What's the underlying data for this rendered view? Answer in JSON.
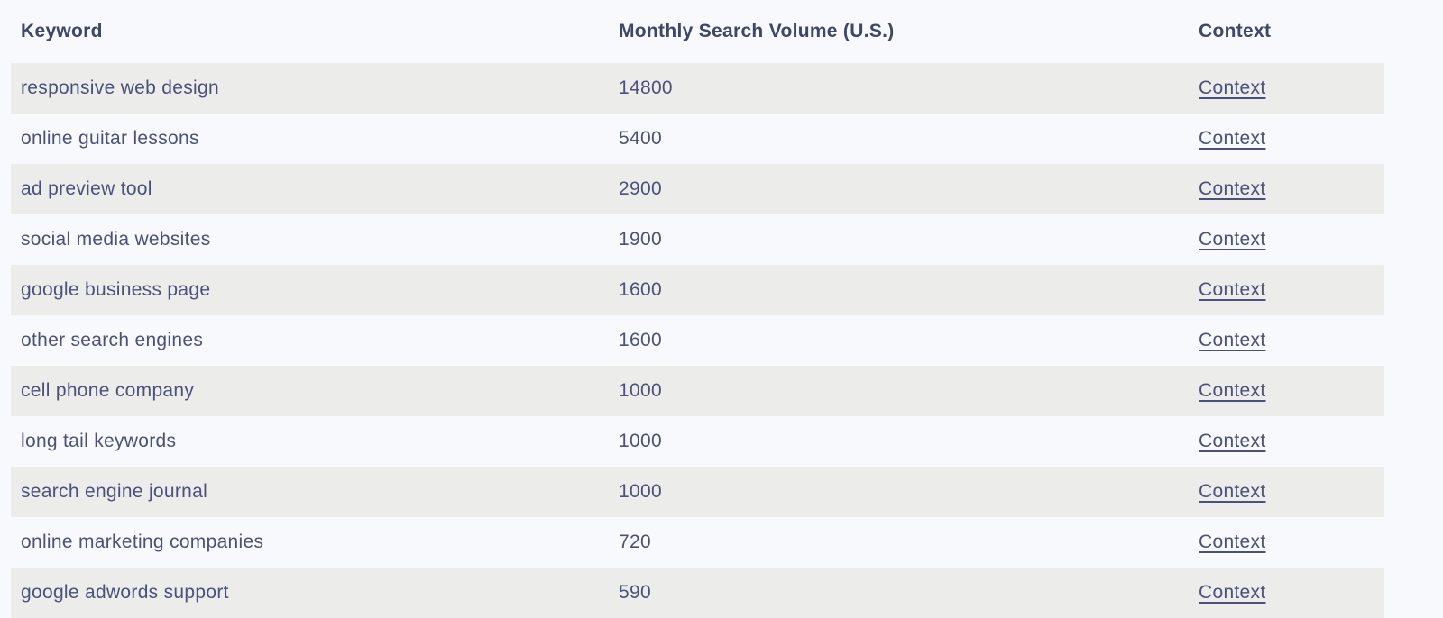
{
  "colors": {
    "page_bg": "#F8F9FC",
    "stripe_bg": "#ECECEA",
    "body_text": "#4B517A",
    "header_text": "#3F466B"
  },
  "table": {
    "headers": {
      "keyword": "Keyword",
      "volume": "Monthly Search Volume (U.S.)",
      "context": "Context"
    },
    "rows": [
      {
        "keyword": "responsive web design",
        "volume": 14800,
        "context_label": "Context"
      },
      {
        "keyword": "online guitar lessons",
        "volume": 5400,
        "context_label": "Context"
      },
      {
        "keyword": "ad preview tool",
        "volume": 2900,
        "context_label": "Context"
      },
      {
        "keyword": "social media websites",
        "volume": 1900,
        "context_label": "Context"
      },
      {
        "keyword": "google business page",
        "volume": 1600,
        "context_label": "Context"
      },
      {
        "keyword": "other search engines",
        "volume": 1600,
        "context_label": "Context"
      },
      {
        "keyword": "cell phone company",
        "volume": 1000,
        "context_label": "Context"
      },
      {
        "keyword": "long tail keywords",
        "volume": 1000,
        "context_label": "Context"
      },
      {
        "keyword": "search engine journal",
        "volume": 1000,
        "context_label": "Context"
      },
      {
        "keyword": "online marketing companies",
        "volume": 720,
        "context_label": "Context"
      },
      {
        "keyword": "google adwords support",
        "volume": 590,
        "context_label": "Context"
      }
    ]
  }
}
